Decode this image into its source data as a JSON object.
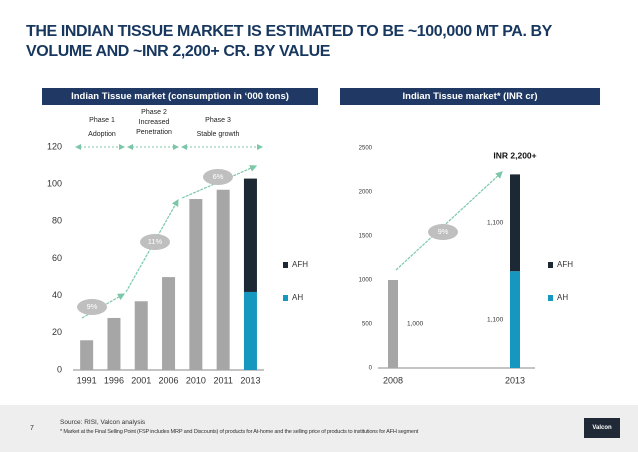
{
  "slide_title": "THE INDIAN TISSUE MARKET IS ESTIMATED TO BE ~100,000 MT PA. BY VOLUME AND ~INR 2,200+ CR. BY VALUE",
  "chart_data": [
    {
      "type": "bar",
      "title": "Indian Tissue market (consumption in ‘000 tons)",
      "categories": [
        "1991",
        "1996",
        "2001",
        "2006",
        "2010",
        "2011",
        "2013"
      ],
      "series": [
        {
          "color": "#a6a6a6",
          "values": [
            16,
            28,
            37,
            50,
            92,
            97,
            null
          ]
        },
        {
          "name": "AFH",
          "color": "#1c2833",
          "values": [
            null,
            null,
            null,
            null,
            null,
            null,
            61
          ]
        },
        {
          "name": "AH",
          "color": "#1597bf",
          "values": [
            null,
            null,
            null,
            null,
            null,
            null,
            42
          ]
        }
      ],
      "ylim": [
        0,
        120
      ],
      "yticks": [
        0,
        20,
        40,
        60,
        80,
        100,
        120
      ],
      "annotations": [
        "9%",
        "11%",
        "6%"
      ],
      "phases": [
        {
          "title": "Phase 1",
          "subtitle": "Adoption"
        },
        {
          "title": "Phase 2",
          "subtitle": "Increased Penetration"
        },
        {
          "title": "Phase 3",
          "subtitle": "Stable growth"
        }
      ]
    },
    {
      "type": "bar",
      "title": "Indian Tissue market* (INR cr)",
      "categories": [
        "2008",
        "2013"
      ],
      "series": [
        {
          "color": "#a6a6a6",
          "values": [
            1000,
            null
          ],
          "value_labels": [
            "1,000",
            null
          ]
        },
        {
          "name": "AFH",
          "color": "#1c2833",
          "values": [
            null,
            1100
          ],
          "value_labels": [
            null,
            "1,100"
          ]
        },
        {
          "name": "AH",
          "color": "#1597bf",
          "values": [
            null,
            1100
          ],
          "value_labels": [
            null,
            "1,100"
          ]
        }
      ],
      "ylim": [
        0,
        2500
      ],
      "yticks": [
        0,
        500,
        1000,
        1500,
        2000,
        2500
      ],
      "annotations": [
        "9%"
      ],
      "callout": "INR 2,200+"
    }
  ],
  "footer": {
    "page_number": "7",
    "source": "Source: RISI, Valcon analysis",
    "note": "*   Market at the Final Selling Point (FSP includes MRP and Discounts) of products for At-home and the selling price of products to institutions for AFH segment",
    "logo": "Valcon"
  }
}
